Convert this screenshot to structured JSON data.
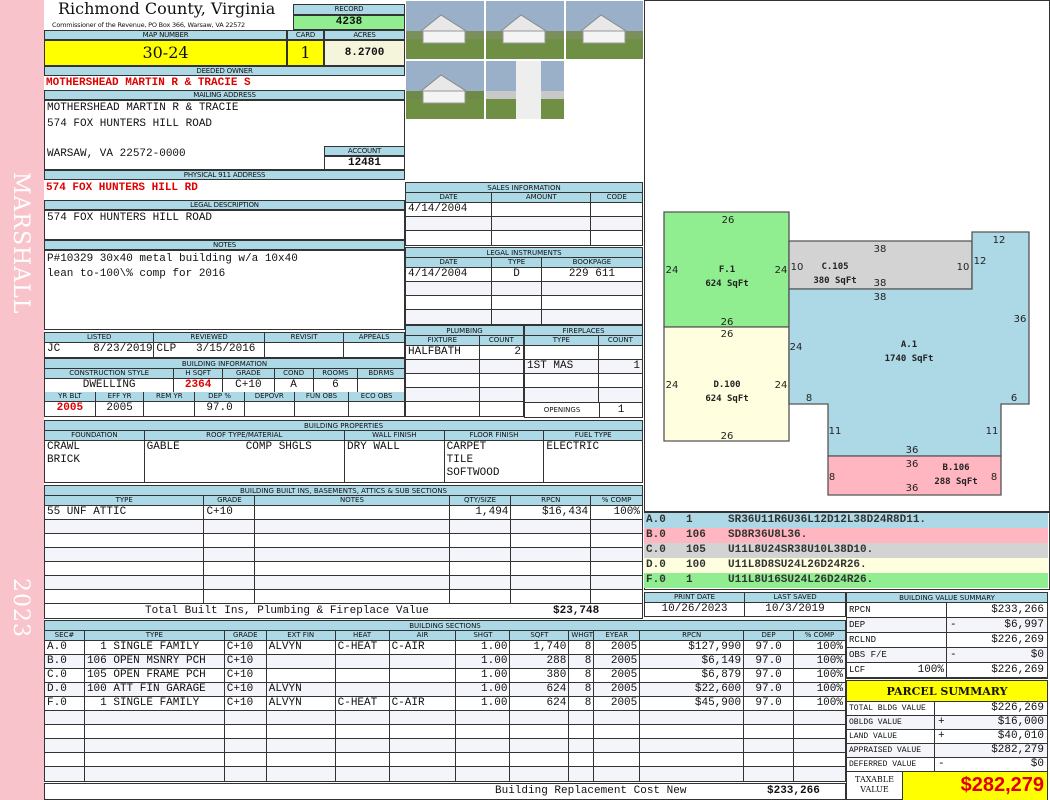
{
  "sidebar": {
    "district": "MARSHALL",
    "year": "2023"
  },
  "header": {
    "county": "Richmond County, Virginia",
    "commissioner": "Commissioner of the Revenue, PO Box 366, Warsaw, VA 22572",
    "record_label": "RECORD",
    "record": "4238",
    "map_label": "MAP NUMBER",
    "map_number": "30-24",
    "card_label": "CARD",
    "card": "1",
    "acres_label": "ACRES",
    "acres": "8.2700"
  },
  "owner": {
    "label": "DEEDED OWNER",
    "name": "MOTHERSHEAD MARTIN R & TRACIE S"
  },
  "mailing": {
    "label": "MAILING ADDRESS",
    "line1": "MOTHERSHEAD MARTIN R & TRACIE",
    "line2": "574 FOX HUNTERS HILL ROAD",
    "line3": "WARSAW, VA 22572-0000",
    "account_label": "ACCOUNT",
    "account": "12481"
  },
  "physical": {
    "label": "PHYSICAL 911 ADDRESS",
    "address": "574 FOX HUNTERS HILL RD"
  },
  "legal": {
    "label": "LEGAL DESCRIPTION",
    "text": "574 FOX HUNTERS HILL ROAD"
  },
  "notes": {
    "label": "NOTES",
    "line1": "P#10329 30x40 metal building w/a 10x40",
    "line2": "lean to-100\\% comp for 2016"
  },
  "review": {
    "title": "",
    "headers": [
      "LISTED",
      "REVIEWED",
      "REVISIT",
      "APPEALS"
    ],
    "rows": [
      [
        "JC     8/23/2019",
        "CLP   3/15/2016",
        "",
        ""
      ]
    ]
  },
  "bldg_info": {
    "title": "BUILDING INFORMATION",
    "headers": [
      "CONSTRUCTION STYLE",
      "H SQFT",
      "GRADE",
      "COND",
      "ROOMS",
      "BDRMS"
    ],
    "rows": [
      [
        "DWELLING",
        "2364",
        "C+10",
        "A",
        "6",
        ""
      ]
    ],
    "headers2": [
      "YR BLT",
      "EFF YR",
      "REM YR",
      "DEP %",
      "DEPOVR",
      "FUN OBS",
      "ECO OBS"
    ],
    "rows2": [
      [
        "2005",
        "2005",
        "",
        "97.0",
        "",
        "",
        ""
      ]
    ]
  },
  "sales": {
    "title": "SALES INFORMATION",
    "headers": [
      "DATE",
      "AMOUNT",
      "CODE"
    ],
    "rows": [
      [
        "4/14/2004",
        "",
        ""
      ]
    ]
  },
  "instruments": {
    "title": "LEGAL INSTRUMENTS",
    "headers": [
      "DATE",
      "TYPE",
      "BOOKPAGE"
    ],
    "rows": [
      [
        "4/14/2004",
        "D",
        "229 611"
      ]
    ]
  },
  "plumbing": {
    "title": "PLUMBING",
    "headers": [
      "FIXTURE",
      "COUNT"
    ],
    "rows": [
      [
        "HALFBATH",
        "2"
      ]
    ]
  },
  "fireplaces": {
    "title": "FIREPLACES",
    "headers": [
      "TYPE",
      "COUNT"
    ],
    "rows": [
      [
        "",
        ""
      ],
      [
        "1ST MAS",
        "1"
      ]
    ],
    "openings_label": "OPENINGS",
    "openings": "1"
  },
  "properties": {
    "title": "BUILDING PROPERTIES",
    "headers": [
      "FOUNDATION",
      "ROOF TYPE/MATERIAL",
      "WALL FINISH",
      "FLOOR FINISH",
      "FUEL TYPE"
    ],
    "rows": [
      [
        "CRAWL\nBRICK",
        "GABLE          COMP SHGLS",
        "DRY WALL",
        "CARPET\nTILE\nSOFTWOOD",
        "ELECTRIC"
      ]
    ]
  },
  "builtins": {
    "title": "BUILDING BUILT INS, BASEMENTS, ATTICS & SUB SECTIONS",
    "headers": [
      "TYPE",
      "GRADE",
      "NOTES",
      "QTY/SIZE",
      "RPCN",
      "% COMP"
    ],
    "rows": [
      [
        "55 UNF ATTIC",
        "C+10",
        "",
        "1,494",
        "$16,434",
        "100%"
      ]
    ],
    "total_label": "Total Built Ins, Plumbing & Fireplace Value",
    "total": "$23,748"
  },
  "sections": {
    "title": "BUILDING SECTIONS",
    "headers": [
      "SEC#",
      "TYPE",
      "GRADE",
      "EXT FIN",
      "HEAT",
      "AIR",
      "SHGT",
      "SQFT",
      "WHGT",
      "EYEAR",
      "RPCN",
      "DEP",
      "% COMP"
    ],
    "rows": [
      [
        "A.0",
        "  1 SINGLE FAMILY",
        "C+10",
        "ALVYN",
        "C-HEAT",
        "C-AIR",
        "1.00",
        "1,740",
        "8",
        "2005",
        "$127,990",
        "97.0",
        "100%"
      ],
      [
        "B.0",
        "106 OPEN MSNRY PCH",
        "C+10",
        "",
        "",
        "",
        "1.00",
        "288",
        "8",
        "2005",
        "$6,149",
        "97.0",
        "100%"
      ],
      [
        "C.0",
        "105 OPEN FRAME PCH",
        "C+10",
        "",
        "",
        "",
        "1.00",
        "380",
        "8",
        "2005",
        "$6,879",
        "97.0",
        "100%"
      ],
      [
        "D.0",
        "100 ATT FIN GARAGE",
        "C+10",
        "ALVYN",
        "",
        "",
        "1.00",
        "624",
        "8",
        "2005",
        "$22,600",
        "97.0",
        "100%"
      ],
      [
        "F.0",
        "  1 SINGLE FAMILY",
        "C+10",
        "ALVYN",
        "C-HEAT",
        "C-AIR",
        "1.00",
        "624",
        "8",
        "2005",
        "$45,900",
        "97.0",
        "100%"
      ]
    ],
    "total_label": "Building Replacement Cost New",
    "total": "$233,266"
  },
  "sketch": {
    "areas": [
      {
        "id": "F.1",
        "sqft": "624 SqFt",
        "color": "#90ee90"
      },
      {
        "id": "D.100",
        "sqft": "624 SqFt",
        "color": "#ffffe0"
      },
      {
        "id": "C.105",
        "sqft": "380 SqFt",
        "color": "#d3d3d3"
      },
      {
        "id": "A.1",
        "sqft": "1740 SqFt",
        "color": "#add8e6"
      },
      {
        "id": "B.106",
        "sqft": "288 SqFt",
        "color": "#ffb6c1"
      }
    ],
    "dims": [
      "26",
      "24",
      "24",
      "26",
      "26",
      "24",
      "24",
      "26",
      "38",
      "10",
      "10",
      "38",
      "12",
      "38",
      "12",
      "36",
      "24",
      "8",
      "6",
      "11",
      "11",
      "36",
      "36",
      "8",
      "8",
      "36"
    ]
  },
  "legend": [
    {
      "sec": "A.0",
      "code": "1",
      "vector": "SR36U11R6U36L12D12L38D24R8D11.",
      "color": "#add8e6"
    },
    {
      "sec": "B.0",
      "code": "106",
      "vector": "SD8R36U8L36.",
      "color": "#ffb6c1"
    },
    {
      "sec": "C.0",
      "code": "105",
      "vector": "U11L8U24SR38U10L38D10.",
      "color": "#d3d3d3"
    },
    {
      "sec": "D.0",
      "code": "100",
      "vector": "U11L8D8SU24L26D24R26.",
      "color": "#ffffe0"
    },
    {
      "sec": "F.0",
      "code": "1",
      "vector": "U11L8U16SU24L26D24R26.",
      "color": "#90ee90"
    }
  ],
  "print": {
    "print_label": "PRINT DATE",
    "print_date": "10/26/2023",
    "saved_label": "LAST SAVED",
    "last_saved": "10/3/2019"
  },
  "value_summary": {
    "title": "BUILDING VALUE SUMMARY",
    "rows": [
      {
        "label": "RPCN",
        "extra": "",
        "sign": "",
        "value": "$233,266"
      },
      {
        "label": "DEP",
        "extra": "",
        "sign": "-",
        "value": "$6,997"
      },
      {
        "label": "RCLND",
        "extra": "",
        "sign": "",
        "value": "$226,269"
      },
      {
        "label": "OBS F/E",
        "extra": "",
        "sign": "-",
        "value": "$0"
      },
      {
        "label": "LCF",
        "extra": "100%",
        "sign": "",
        "value": "$226,269"
      }
    ]
  },
  "parcel": {
    "title": "PARCEL SUMMARY",
    "rows": [
      {
        "label": "TOTAL BLDG VALUE",
        "sign": "",
        "value": "$226,269"
      },
      {
        "label": "OBLDG VALUE",
        "sign": "+",
        "value": "$16,000"
      },
      {
        "label": "LAND VALUE",
        "sign": "+",
        "value": "$40,010"
      },
      {
        "label": "APPRAISED VALUE",
        "sign": "",
        "value": "$282,279"
      },
      {
        "label": "DEFERRED VALUE",
        "sign": "-",
        "value": "$0"
      }
    ],
    "taxable_label": "TAXABLE VALUE",
    "taxable": "$282,279"
  },
  "colors": {
    "header": "#add8e6",
    "highlight": "#ffff00",
    "record": "#90ee90",
    "sidebar": "#f9c3cc",
    "emphasis": "#e00000"
  }
}
